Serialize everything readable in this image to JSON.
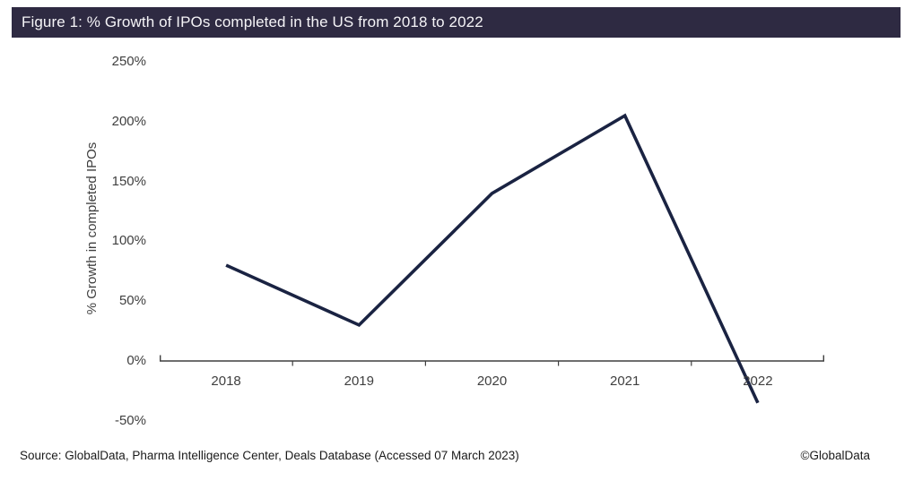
{
  "figure": {
    "title": "Figure 1: % Growth of IPOs completed in the US from 2018 to 2022",
    "source": "Source: GlobalData, Pharma Intelligence Center, Deals Database (Accessed 07 March 2023)",
    "copyright": "©GlobalData",
    "colors": {
      "title_bar_bg": "#2e2a42",
      "title_text": "#f5f4f7",
      "axis": "#3f3f3f",
      "tick_text": "#3f3f3f"
    }
  },
  "chart_data": {
    "type": "line",
    "title": "% Growth of IPOs completed in the US from 2018 to 2022",
    "categories": [
      "2018",
      "2019",
      "2020",
      "2021",
      "2022"
    ],
    "values": [
      80,
      30,
      140,
      205,
      -35
    ],
    "series": [
      {
        "name": "% Growth in completed IPOs",
        "values": [
          80,
          30,
          140,
          205,
          -35
        ]
      }
    ],
    "xlabel": "",
    "ylabel": "% Growth in completed IPOs",
    "y_ticks": [
      "250%",
      "200%",
      "150%",
      "100%",
      "50%",
      "0%",
      "-50%"
    ],
    "y_tick_values": [
      250,
      200,
      150,
      100,
      50,
      0,
      -50
    ],
    "ylim": [
      -50,
      250
    ],
    "grid": false,
    "legend": false,
    "line_color": "#1a2342"
  }
}
